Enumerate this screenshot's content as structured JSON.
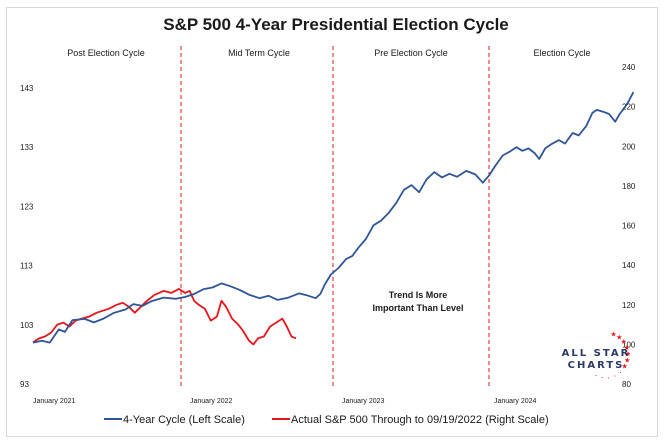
{
  "chart_data": {
    "type": "line",
    "title": "S&P 500 4-Year Presidential Election Cycle",
    "phases": [
      "Post Election Cycle",
      "Mid Term Cycle",
      "Pre Election Cycle",
      "Election Cycle"
    ],
    "x_ticks": [
      "January 2021",
      "January 2022",
      "January 2023",
      "January 2024"
    ],
    "x_range_years": [
      0,
      3.95
    ],
    "y_left": {
      "ticks": [
        93,
        103,
        113,
        123,
        133,
        143
      ],
      "range": [
        93,
        143
      ]
    },
    "y_right": {
      "ticks": [
        80,
        100,
        120,
        140,
        160,
        180,
        200,
        220,
        240
      ],
      "range": [
        80,
        240
      ]
    },
    "series": [
      {
        "name": "4-Year Cycle (Left Scale)",
        "axis": "left",
        "color": "#2f5597",
        "points": [
          [
            0.0,
            100.0
          ],
          [
            0.06,
            100.3
          ],
          [
            0.11,
            100.0
          ],
          [
            0.17,
            102.2
          ],
          [
            0.21,
            101.8
          ],
          [
            0.26,
            103.8
          ],
          [
            0.34,
            104.0
          ],
          [
            0.4,
            103.4
          ],
          [
            0.46,
            104.0
          ],
          [
            0.53,
            105.0
          ],
          [
            0.61,
            105.6
          ],
          [
            0.66,
            106.5
          ],
          [
            0.72,
            106.2
          ],
          [
            0.78,
            107.0
          ],
          [
            0.86,
            107.6
          ],
          [
            0.94,
            107.4
          ],
          [
            1.0,
            107.7
          ],
          [
            1.06,
            108.2
          ],
          [
            1.12,
            109.0
          ],
          [
            1.18,
            109.3
          ],
          [
            1.24,
            110.0
          ],
          [
            1.3,
            109.5
          ],
          [
            1.36,
            108.9
          ],
          [
            1.42,
            108.1
          ],
          [
            1.49,
            107.5
          ],
          [
            1.55,
            107.9
          ],
          [
            1.61,
            107.2
          ],
          [
            1.68,
            107.6
          ],
          [
            1.75,
            108.3
          ],
          [
            1.8,
            108.0
          ],
          [
            1.86,
            107.5
          ],
          [
            1.89,
            108.2
          ],
          [
            1.92,
            109.8
          ],
          [
            1.96,
            111.5
          ],
          [
            2.01,
            112.6
          ],
          [
            2.06,
            114.1
          ],
          [
            2.1,
            114.6
          ],
          [
            2.14,
            116.0
          ],
          [
            2.19,
            117.5
          ],
          [
            2.24,
            119.8
          ],
          [
            2.29,
            120.6
          ],
          [
            2.34,
            121.9
          ],
          [
            2.39,
            123.6
          ],
          [
            2.44,
            125.8
          ],
          [
            2.49,
            126.6
          ],
          [
            2.54,
            125.4
          ],
          [
            2.59,
            127.6
          ],
          [
            2.64,
            128.8
          ],
          [
            2.69,
            127.9
          ],
          [
            2.74,
            128.5
          ],
          [
            2.79,
            128.0
          ],
          [
            2.85,
            129.0
          ],
          [
            2.91,
            128.4
          ],
          [
            2.96,
            127.0
          ],
          [
            3.0,
            128.2
          ],
          [
            3.04,
            129.8
          ],
          [
            3.09,
            131.6
          ],
          [
            3.14,
            132.3
          ],
          [
            3.18,
            133.0
          ],
          [
            3.22,
            132.4
          ],
          [
            3.26,
            132.8
          ],
          [
            3.3,
            132.0
          ],
          [
            3.33,
            131.0
          ],
          [
            3.37,
            132.8
          ],
          [
            3.41,
            133.5
          ],
          [
            3.46,
            134.2
          ],
          [
            3.5,
            133.6
          ],
          [
            3.55,
            135.4
          ],
          [
            3.59,
            135.0
          ],
          [
            3.64,
            136.6
          ],
          [
            3.68,
            138.8
          ],
          [
            3.71,
            139.3
          ],
          [
            3.75,
            139.0
          ],
          [
            3.79,
            138.6
          ],
          [
            3.83,
            137.3
          ],
          [
            3.86,
            138.6
          ],
          [
            3.89,
            139.6
          ],
          [
            3.92,
            140.8
          ],
          [
            3.95,
            142.3
          ]
        ]
      },
      {
        "name": "Actual S&P 500 Through to 09/19/2022 (Right Scale)",
        "axis": "right",
        "color": "#e8141b",
        "points": [
          [
            0.0,
            101
          ],
          [
            0.04,
            103
          ],
          [
            0.08,
            104
          ],
          [
            0.12,
            106
          ],
          [
            0.16,
            110
          ],
          [
            0.2,
            111
          ],
          [
            0.24,
            109
          ],
          [
            0.28,
            112
          ],
          [
            0.32,
            113
          ],
          [
            0.37,
            114
          ],
          [
            0.42,
            116
          ],
          [
            0.46,
            117
          ],
          [
            0.5,
            118
          ],
          [
            0.55,
            120
          ],
          [
            0.59,
            121
          ],
          [
            0.63,
            119
          ],
          [
            0.67,
            116
          ],
          [
            0.71,
            119
          ],
          [
            0.75,
            122
          ],
          [
            0.8,
            125
          ],
          [
            0.86,
            127
          ],
          [
            0.91,
            126
          ],
          [
            0.96,
            128
          ],
          [
            1.0,
            126
          ],
          [
            1.03,
            127
          ],
          [
            1.06,
            122
          ],
          [
            1.09,
            120
          ],
          [
            1.13,
            118
          ],
          [
            1.17,
            112
          ],
          [
            1.21,
            114
          ],
          [
            1.24,
            122
          ],
          [
            1.27,
            119
          ],
          [
            1.31,
            113
          ],
          [
            1.35,
            110
          ],
          [
            1.38,
            107
          ],
          [
            1.42,
            102
          ],
          [
            1.45,
            100
          ],
          [
            1.48,
            103
          ],
          [
            1.52,
            104
          ],
          [
            1.56,
            109
          ],
          [
            1.6,
            111
          ],
          [
            1.64,
            113
          ],
          [
            1.67,
            109
          ],
          [
            1.7,
            104
          ],
          [
            1.73,
            103
          ]
        ]
      }
    ],
    "annotation": [
      "Trend Is More",
      "Important Than Level"
    ],
    "legend_position": "bottom",
    "grid": false,
    "phase_divider_color": "#e8141b"
  },
  "logo": {
    "line1": "ALL STAR",
    "line2": "CHARTS"
  }
}
